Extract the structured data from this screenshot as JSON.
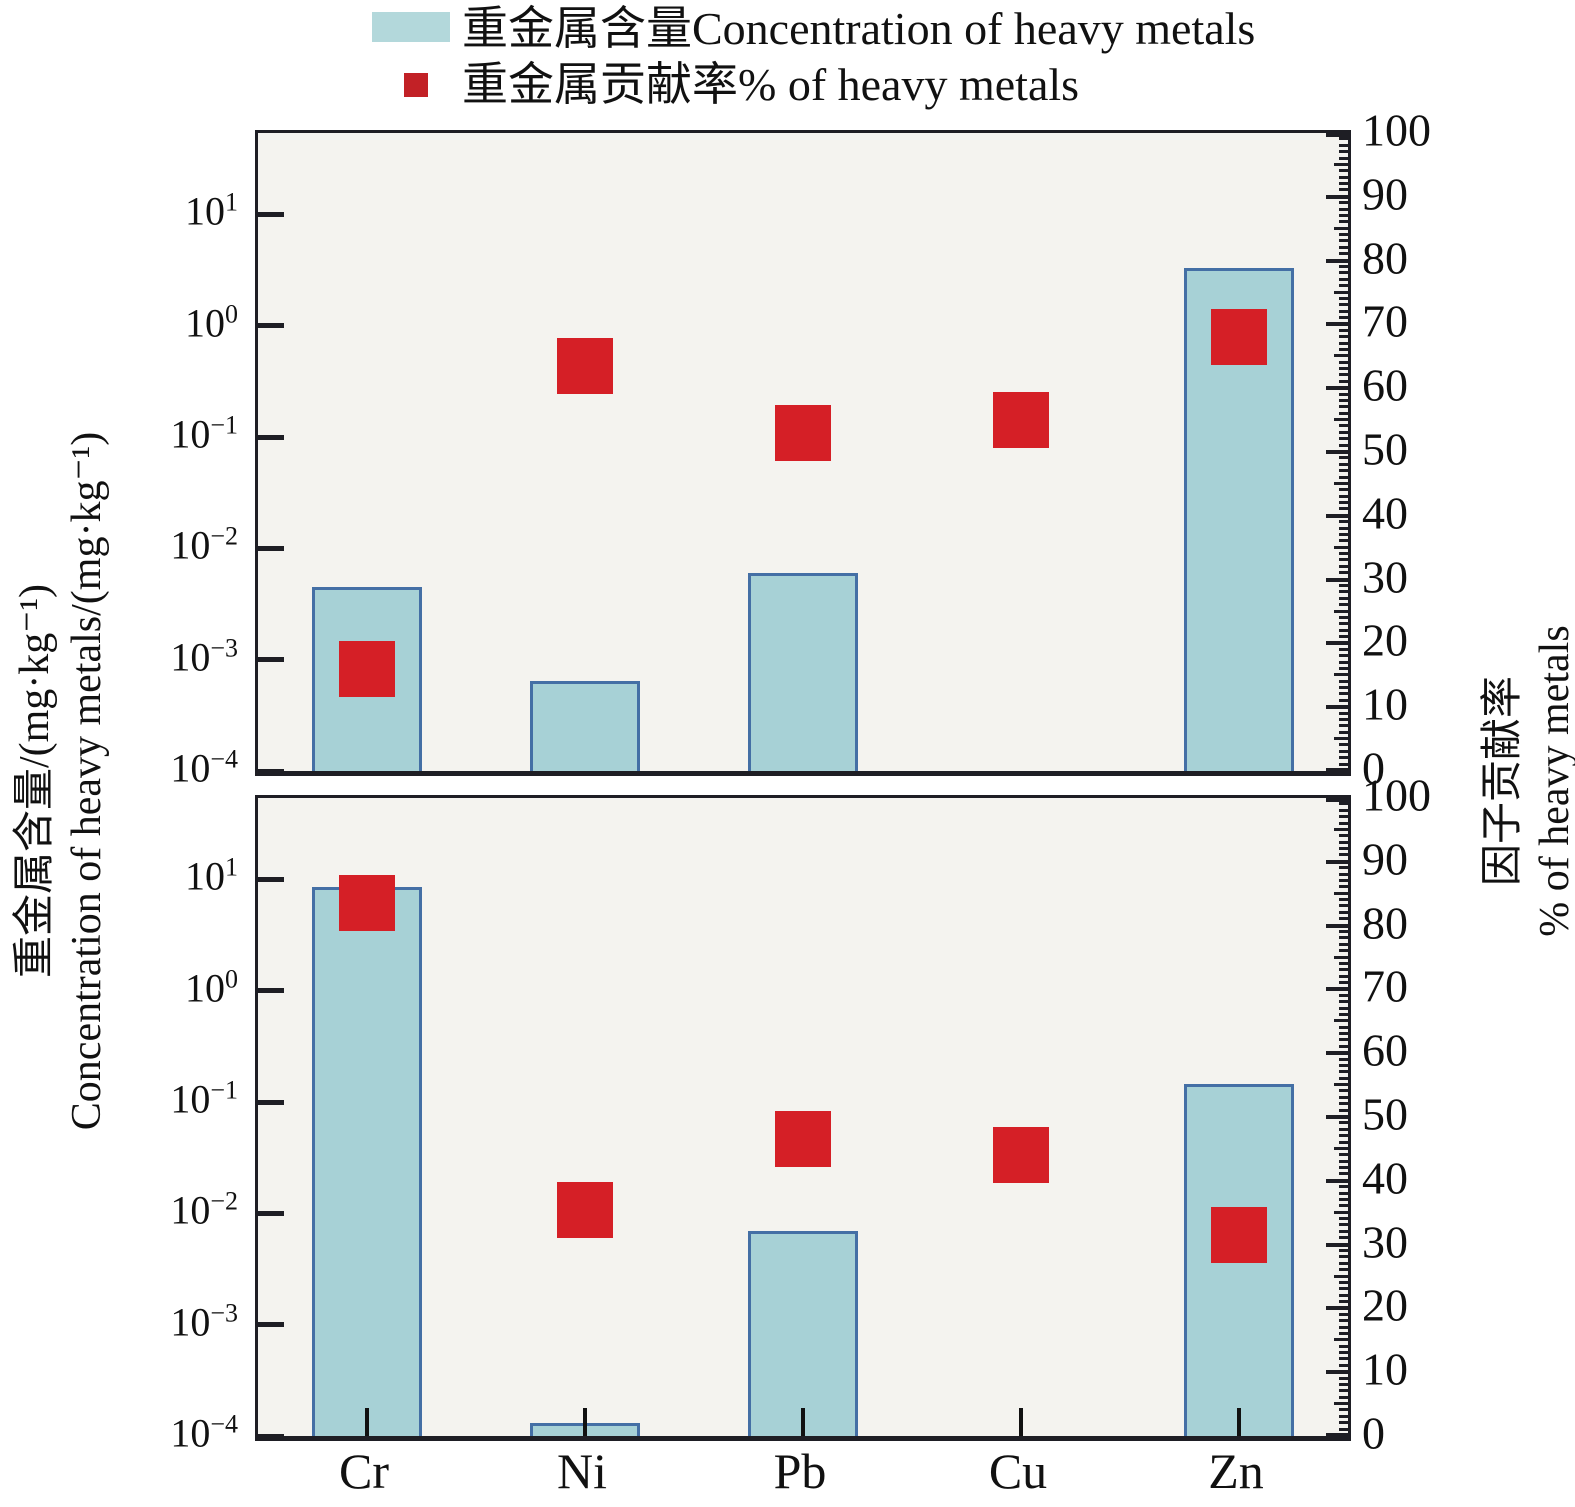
{
  "legend": {
    "items": [
      {
        "label": "重金属含量Concentration of heavy metals",
        "swatch": "bar",
        "color": "#b3d8db"
      },
      {
        "label": "重金属贡献率% of heavy metals",
        "swatch": "square",
        "color": "#c22126"
      }
    ]
  },
  "colors": {
    "bar_fill": "#a7d1d6",
    "bar_border": "#446fa5",
    "square_red": "#d51f26",
    "panel_background": "#f4f3ef",
    "frame": "#1e1e24"
  },
  "chart_data": {
    "type": "bar",
    "categories": [
      "Cr",
      "Ni",
      "Pb",
      "Cu",
      "Zn"
    ],
    "left_axis": {
      "scale": "log",
      "range_bottom": 0.0001,
      "range_top_exponent": 1.73,
      "tick_exponents": [
        1,
        0,
        -1,
        -2,
        -3,
        -4
      ],
      "label_zh": "重金属含量/(mg·kg⁻¹)",
      "label_en": "Concentration of heavy metals/(mg·kg⁻¹)"
    },
    "right_axis": {
      "min": 0,
      "max": 100,
      "major_tick_step": 10,
      "minor_tick_step": 1,
      "ticks": [
        100,
        90,
        80,
        70,
        60,
        50,
        40,
        30,
        20,
        10,
        0
      ],
      "label_zh": "因子贡献率",
      "label_en": "% of heavy metals"
    },
    "panels": [
      {
        "name": "top-panel",
        "series": [
          {
            "name": "重金属含量Concentration of heavy metals",
            "type": "bar",
            "axis": "left",
            "values": [
              0.0045,
              0.00065,
              0.006,
              null,
              3.3
            ]
          },
          {
            "name": "重金属贡献率% of heavy metals",
            "type": "scatter-square",
            "axis": "right",
            "values": [
              16,
              63.5,
              53,
              55,
              68
            ]
          }
        ]
      },
      {
        "name": "bottom-panel",
        "series": [
          {
            "name": "重金属含量Concentration of heavy metals",
            "type": "bar",
            "axis": "left",
            "values": [
              8.5,
              0.00013,
              0.007,
              null,
              0.145
            ]
          },
          {
            "name": "重金属贡献率% of heavy metals",
            "type": "scatter-square",
            "axis": "right",
            "values": [
              83.5,
              35.5,
              46.5,
              44,
              31.5
            ]
          }
        ]
      }
    ]
  }
}
